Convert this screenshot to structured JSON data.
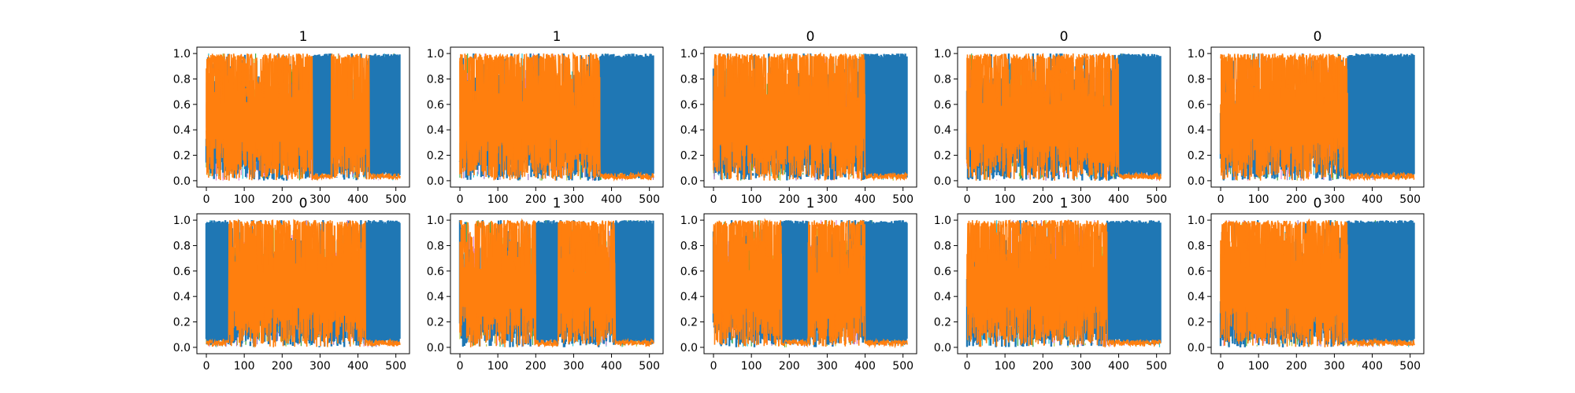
{
  "figure": {
    "background": "#ffffff",
    "series_colors": [
      "#1f77b4",
      "#ff7f0e",
      "#17becf",
      "#bcbd22",
      "#2ca02c",
      "#9467bd",
      "#e377c2"
    ],
    "overlay_color": "#ff7f0e",
    "base_color": "#1f77b4"
  },
  "chart_data": [
    {
      "type": "line",
      "title": "1",
      "x_range": [
        0,
        511
      ],
      "xlim": [
        -25,
        536
      ],
      "ylim": [
        -0.05,
        1.05
      ],
      "xticks": [
        0,
        100,
        200,
        300,
        400,
        500
      ],
      "xtick_labels": [
        "0",
        "100",
        "200",
        "300",
        "400",
        "500"
      ],
      "yticks": [
        0.0,
        0.2,
        0.4,
        0.6,
        0.8,
        1.0
      ],
      "ytick_labels": [
        "0.0",
        "0.2",
        "0.4",
        "0.6",
        "0.8",
        "1.0"
      ],
      "dominant_segments": [
        {
          "x": [
            0,
            280
          ],
          "series": "orange"
        },
        {
          "x": [
            280,
            330
          ],
          "series": "blue"
        },
        {
          "x": [
            330,
            430
          ],
          "series": "orange"
        },
        {
          "x": [
            430,
            511
          ],
          "series": "blue"
        }
      ]
    },
    {
      "type": "line",
      "title": "1",
      "x_range": [
        0,
        511
      ],
      "xlim": [
        -25,
        536
      ],
      "ylim": [
        -0.05,
        1.05
      ],
      "xticks": [
        0,
        100,
        200,
        300,
        400,
        500
      ],
      "xtick_labels": [
        "0",
        "100",
        "200",
        "300",
        "400",
        "500"
      ],
      "yticks": [
        0.0,
        0.2,
        0.4,
        0.6,
        0.8,
        1.0
      ],
      "ytick_labels": [
        "0.0",
        "0.2",
        "0.4",
        "0.6",
        "0.8",
        "1.0"
      ],
      "dominant_segments": [
        {
          "x": [
            0,
            370
          ],
          "series": "orange"
        },
        {
          "x": [
            370,
            511
          ],
          "series": "blue"
        }
      ]
    },
    {
      "type": "line",
      "title": "0",
      "x_range": [
        0,
        511
      ],
      "xlim": [
        -25,
        536
      ],
      "ylim": [
        -0.05,
        1.05
      ],
      "xticks": [
        0,
        100,
        200,
        300,
        400,
        500
      ],
      "xtick_labels": [
        "0",
        "100",
        "200",
        "300",
        "400",
        "500"
      ],
      "yticks": [
        0.0,
        0.2,
        0.4,
        0.6,
        0.8,
        1.0
      ],
      "ytick_labels": [
        "0.0",
        "0.2",
        "0.4",
        "0.6",
        "0.8",
        "1.0"
      ],
      "dominant_segments": [
        {
          "x": [
            0,
            400
          ],
          "series": "orange"
        },
        {
          "x": [
            400,
            511
          ],
          "series": "blue"
        }
      ]
    },
    {
      "type": "line",
      "title": "0",
      "x_range": [
        0,
        511
      ],
      "xlim": [
        -25,
        536
      ],
      "ylim": [
        -0.05,
        1.05
      ],
      "xticks": [
        0,
        100,
        200,
        300,
        400,
        500
      ],
      "xtick_labels": [
        "0",
        "100",
        "200",
        "300",
        "400",
        "500"
      ],
      "yticks": [
        0.0,
        0.2,
        0.4,
        0.6,
        0.8,
        1.0
      ],
      "ytick_labels": [
        "0.0",
        "0.2",
        "0.4",
        "0.6",
        "0.8",
        "1.0"
      ],
      "dominant_segments": [
        {
          "x": [
            0,
            400
          ],
          "series": "orange"
        },
        {
          "x": [
            400,
            511
          ],
          "series": "blue"
        }
      ]
    },
    {
      "type": "line",
      "title": "0",
      "x_range": [
        0,
        511
      ],
      "xlim": [
        -25,
        536
      ],
      "ylim": [
        -0.05,
        1.05
      ],
      "xticks": [
        0,
        100,
        200,
        300,
        400,
        500
      ],
      "xtick_labels": [
        "0",
        "100",
        "200",
        "300",
        "400",
        "500"
      ],
      "yticks": [
        0.0,
        0.2,
        0.4,
        0.6,
        0.8,
        1.0
      ],
      "ytick_labels": [
        "0.0",
        "0.2",
        "0.4",
        "0.6",
        "0.8",
        "1.0"
      ],
      "dominant_segments": [
        {
          "x": [
            0,
            335
          ],
          "series": "orange"
        },
        {
          "x": [
            335,
            511
          ],
          "series": "blue"
        }
      ]
    },
    {
      "type": "line",
      "title": "0",
      "x_range": [
        0,
        511
      ],
      "xlim": [
        -25,
        536
      ],
      "ylim": [
        -0.05,
        1.05
      ],
      "xticks": [
        0,
        100,
        200,
        300,
        400,
        500
      ],
      "xtick_labels": [
        "0",
        "100",
        "200",
        "300",
        "400",
        "500"
      ],
      "yticks": [
        0.0,
        0.2,
        0.4,
        0.6,
        0.8,
        1.0
      ],
      "ytick_labels": [
        "0.0",
        "0.2",
        "0.4",
        "0.6",
        "0.8",
        "1.0"
      ],
      "dominant_segments": [
        {
          "x": [
            0,
            60
          ],
          "series": "blue"
        },
        {
          "x": [
            60,
            420
          ],
          "series": "orange"
        },
        {
          "x": [
            420,
            511
          ],
          "series": "blue"
        }
      ]
    },
    {
      "type": "line",
      "title": "1",
      "x_range": [
        0,
        511
      ],
      "xlim": [
        -25,
        536
      ],
      "ylim": [
        -0.05,
        1.05
      ],
      "xticks": [
        0,
        100,
        200,
        300,
        400,
        500
      ],
      "xtick_labels": [
        "0",
        "100",
        "200",
        "300",
        "400",
        "500"
      ],
      "yticks": [
        0.0,
        0.2,
        0.4,
        0.6,
        0.8,
        1.0
      ],
      "ytick_labels": [
        "0.0",
        "0.2",
        "0.4",
        "0.6",
        "0.8",
        "1.0"
      ],
      "dominant_segments": [
        {
          "x": [
            0,
            200
          ],
          "series": "orange"
        },
        {
          "x": [
            200,
            260
          ],
          "series": "blue"
        },
        {
          "x": [
            260,
            410
          ],
          "series": "orange"
        },
        {
          "x": [
            410,
            511
          ],
          "series": "blue"
        }
      ]
    },
    {
      "type": "line",
      "title": "1",
      "x_range": [
        0,
        511
      ],
      "xlim": [
        -25,
        536
      ],
      "ylim": [
        -0.05,
        1.05
      ],
      "xticks": [
        0,
        100,
        200,
        300,
        400,
        500
      ],
      "xtick_labels": [
        "0",
        "100",
        "200",
        "300",
        "400",
        "500"
      ],
      "yticks": [
        0.0,
        0.2,
        0.4,
        0.6,
        0.8,
        1.0
      ],
      "ytick_labels": [
        "0.0",
        "0.2",
        "0.4",
        "0.6",
        "0.8",
        "1.0"
      ],
      "dominant_segments": [
        {
          "x": [
            0,
            180
          ],
          "series": "orange"
        },
        {
          "x": [
            180,
            250
          ],
          "series": "blue"
        },
        {
          "x": [
            250,
            400
          ],
          "series": "orange"
        },
        {
          "x": [
            400,
            511
          ],
          "series": "blue"
        }
      ]
    },
    {
      "type": "line",
      "title": "1",
      "x_range": [
        0,
        511
      ],
      "xlim": [
        -25,
        536
      ],
      "ylim": [
        -0.05,
        1.05
      ],
      "xticks": [
        0,
        100,
        200,
        300,
        400,
        500
      ],
      "xtick_labels": [
        "0",
        "100",
        "200",
        "300",
        "400",
        "500"
      ],
      "yticks": [
        0.0,
        0.2,
        0.4,
        0.6,
        0.8,
        1.0
      ],
      "ytick_labels": [
        "0.0",
        "0.2",
        "0.4",
        "0.6",
        "0.8",
        "1.0"
      ],
      "dominant_segments": [
        {
          "x": [
            0,
            370
          ],
          "series": "orange"
        },
        {
          "x": [
            370,
            511
          ],
          "series": "blue"
        }
      ]
    },
    {
      "type": "line",
      "title": "0",
      "x_range": [
        0,
        511
      ],
      "xlim": [
        -25,
        536
      ],
      "ylim": [
        -0.05,
        1.05
      ],
      "xticks": [
        0,
        100,
        200,
        300,
        400,
        500
      ],
      "xtick_labels": [
        "0",
        "100",
        "200",
        "300",
        "400",
        "500"
      ],
      "yticks": [
        0.0,
        0.2,
        0.4,
        0.6,
        0.8,
        1.0
      ],
      "ytick_labels": [
        "0.0",
        "0.2",
        "0.4",
        "0.6",
        "0.8",
        "1.0"
      ],
      "dominant_segments": [
        {
          "x": [
            0,
            335
          ],
          "series": "orange"
        },
        {
          "x": [
            335,
            511
          ],
          "series": "blue"
        }
      ]
    }
  ]
}
